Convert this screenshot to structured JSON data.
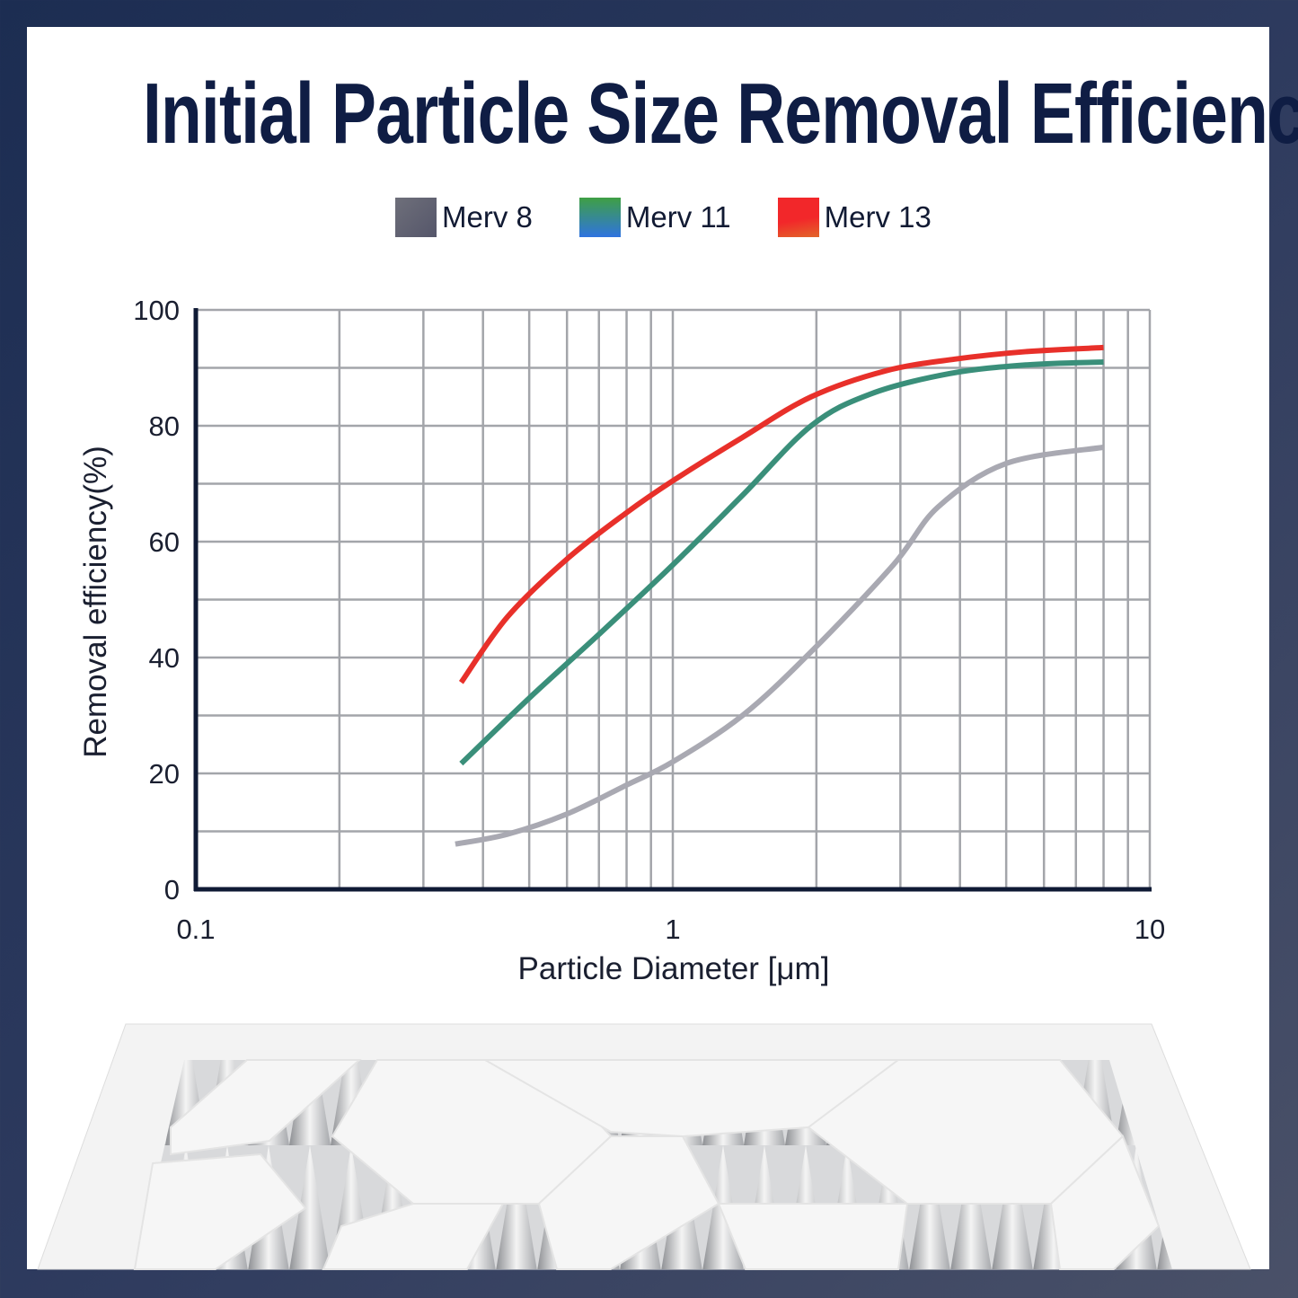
{
  "chart_data": {
    "type": "line",
    "title": "Initial Particle Size Removal Efficiency",
    "xlabel": "Particle Diameter [μm]",
    "ylabel": "Removal efficiency(%)",
    "xscale": "log",
    "xlim": [
      0.1,
      10
    ],
    "ylim": [
      0,
      100
    ],
    "xticks": [
      "0.1",
      "1",
      "10"
    ],
    "yticks": [
      "0",
      "20",
      "40",
      "60",
      "80",
      "100"
    ],
    "grid": true,
    "legend_position": "top",
    "series": [
      {
        "name": "Merv 8",
        "color": "#a9a9b2",
        "legend_color": "#5f606b",
        "x": [
          0.35,
          0.45,
          0.6,
          0.8,
          1.0,
          1.4,
          1.95,
          2.9,
          3.6,
          5.0,
          8.0
        ],
        "y": [
          7.8,
          9.5,
          13,
          18,
          22,
          30,
          41,
          56,
          66,
          73.5,
          76.3
        ]
      },
      {
        "name": "Merv 11",
        "color": "#3a8f7a",
        "legend_color": "#3f8f63",
        "x": [
          0.36,
          0.5,
          0.7,
          1.0,
          1.4,
          1.95,
          2.6,
          3.8,
          5.5,
          8.0
        ],
        "y": [
          21.7,
          33,
          44,
          56,
          68,
          80,
          85.5,
          89,
          90.5,
          91
        ]
      },
      {
        "name": "Merv 13",
        "color": "#e8302a",
        "legend_color": "#f0282a",
        "x": [
          0.36,
          0.45,
          0.6,
          0.8,
          1.0,
          1.4,
          1.95,
          2.8,
          3.9,
          5.5,
          8.0
        ],
        "y": [
          35.7,
          47,
          57,
          65,
          70.5,
          78,
          85,
          89.5,
          91.5,
          92.8,
          93.5
        ]
      }
    ]
  }
}
